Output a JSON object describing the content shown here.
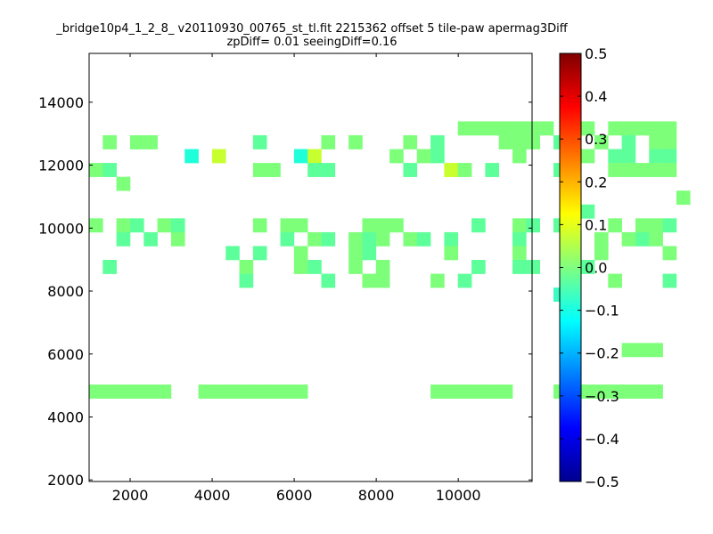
{
  "chart_data": {
    "type": "heatmap",
    "title": "_bridge10p4_1_2_8_ v20110930_00765_st_tl.fit 2215362 offset 5 tile-paw apermag3Diff",
    "subtitle": "zpDiff= 0.01 seeingDiff=0.16",
    "xlabel": "",
    "ylabel": "",
    "xlim": [
      1000,
      11800
    ],
    "ylim": [
      1950,
      15550
    ],
    "x_ticks": [
      2000,
      4000,
      6000,
      8000,
      10000
    ],
    "x_tick_labels": [
      "2000",
      "4000",
      "6000",
      "8000",
      "10000"
    ],
    "y_ticks": [
      2000,
      4000,
      6000,
      8000,
      10000,
      12000,
      14000
    ],
    "y_tick_labels": [
      "2000",
      "4000",
      "6000",
      "8000",
      "10000",
      "12000",
      "14000"
    ],
    "colormap": "jet",
    "clim": [
      -0.5,
      0.5
    ],
    "colorbar_ticks": [
      0.5,
      0.4,
      0.3,
      0.2,
      0.1,
      0.0,
      -0.1,
      -0.2,
      -0.3,
      -0.4,
      -0.5
    ],
    "colorbar_tick_labels": [
      "0.5",
      "0.4",
      "0.3",
      "0.2",
      "0.1",
      "0.0",
      "−0.1",
      "−0.2",
      "−0.3",
      "−0.4",
      "−0.5"
    ],
    "grid": false,
    "cell_width": 333,
    "cell_height": 440,
    "x_start": 1000,
    "y_start": 1950,
    "rows": [
      "...........................aaaaaaa.aa.aaaaa",
      ".a.aa.......b....a.a...a.b....aaa.b..a.b.aa",
      ".......d.c.....dc.....a.ab.....a...aa.bb.bb",
      "ab..........aa..bb.....b..ca.b....b...aaaaa",
      "..a.........................................",
      "...........................................a",
      "....................................b......",
      "a.ab.ab.....a.aa....aaa.....b..ab.bb..a.aab",
      "..b.b.a.......b.ab.aba.ab.b....b.....a.aba.",
      "..........b.b..a...ab.....a....a.....a....a",
      ".b.........a...ab..a.a......b..bb..ab......",
      "...........b.....b..aa...a.b.......a..a...b",
      "..................................e........",
      "...........................................",
      "...........................................",
      "...........................................",
      ".......................................aaa.",
      "...........................................",
      "...........................................",
      "aaaaaa..aaaaaaaa.........aaaaaa...aaaaaaaa.",
      "...........................................",
      "...........................................",
      "...........................................",
      "...........................................",
      "...........................................",
      "..........................................."
    ],
    "series": []
  }
}
